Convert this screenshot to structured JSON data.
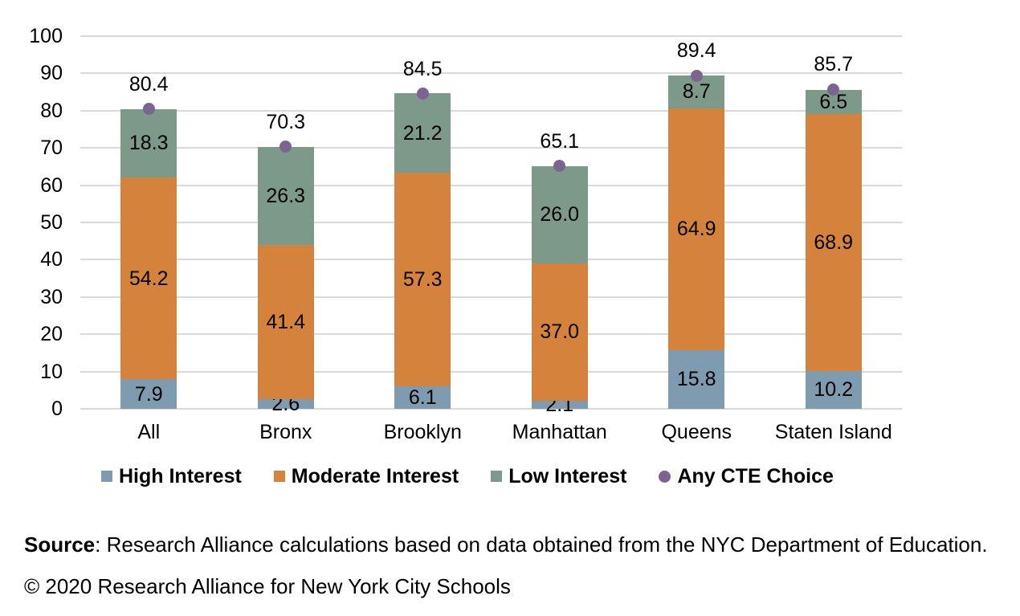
{
  "chart_data": {
    "type": "bar",
    "subtype": "stacked-column-with-point-overlay",
    "title": "",
    "xlabel": "",
    "ylabel": "",
    "ylim": [
      0,
      100
    ],
    "yticks": [
      0,
      10,
      20,
      30,
      40,
      50,
      60,
      70,
      80,
      90,
      100
    ],
    "grid": true,
    "legend_position": "bottom",
    "categories": [
      "All",
      "Bronx",
      "Brooklyn",
      "Manhattan",
      "Queens",
      "Staten Island"
    ],
    "series": [
      {
        "name": "High Interest",
        "color": "#7e9baf",
        "values": [
          7.9,
          2.6,
          6.1,
          2.1,
          15.8,
          10.2
        ],
        "labels": [
          "7.9",
          "2.6",
          "6.1",
          "2.1",
          "15.8",
          "10.2"
        ]
      },
      {
        "name": "Moderate Interest",
        "color": "#d5823c",
        "values": [
          54.2,
          41.4,
          57.3,
          37.0,
          64.9,
          68.9
        ],
        "labels": [
          "54.2",
          "41.4",
          "57.3",
          "37.0",
          "64.9",
          "68.9"
        ]
      },
      {
        "name": "Low Interest",
        "color": "#7d998a",
        "values": [
          18.3,
          26.3,
          21.2,
          26.0,
          8.7,
          6.5
        ],
        "labels": [
          "18.3",
          "26.3",
          "21.2",
          "26.0",
          "8.7",
          "6.5"
        ]
      }
    ],
    "point_series": {
      "name": "Any CTE Choice",
      "color": "#7b6590",
      "values": [
        80.4,
        70.3,
        84.5,
        65.1,
        89.4,
        85.7
      ],
      "labels": [
        "80.4",
        "70.3",
        "84.5",
        "65.1",
        "89.4",
        "85.7"
      ]
    },
    "colors": {
      "gridline": "#d9d9d9",
      "text": "#000000"
    }
  },
  "footer": {
    "source_label": "Source",
    "source_text": ": Research Alliance calculations based on data obtained from the NYC Department of Education.",
    "copyright": "© 2020 Research Alliance for New York City Schools"
  }
}
